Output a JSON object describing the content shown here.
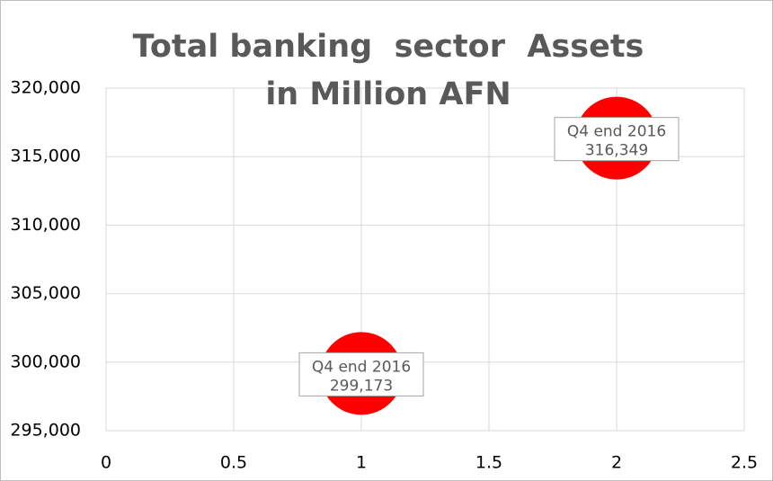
{
  "chart_data": {
    "type": "scatter",
    "title": "Total banking  sector  Assets in Million AFN",
    "x": [
      1,
      2
    ],
    "values": [
      299173,
      316349
    ],
    "value_labels": [
      "299,173",
      "316,349"
    ],
    "point_labels": [
      "Q4 end 2016",
      "Q4 end 2016"
    ],
    "color": "#ff0000",
    "xlim": [
      0,
      2.5
    ],
    "xticks": [
      0,
      0.5,
      1,
      1.5,
      2,
      2.5
    ],
    "ylim": [
      295000,
      320000
    ],
    "yticks": [
      {
        "value": 295000,
        "label": "295,000"
      },
      {
        "value": 300000,
        "label": "300,000"
      },
      {
        "value": 305000,
        "label": "305,000"
      },
      {
        "value": 310000,
        "label": "310,000"
      },
      {
        "value": 315000,
        "label": "315,000"
      },
      {
        "value": 320000,
        "label": "320,000"
      }
    ],
    "grid": true
  }
}
